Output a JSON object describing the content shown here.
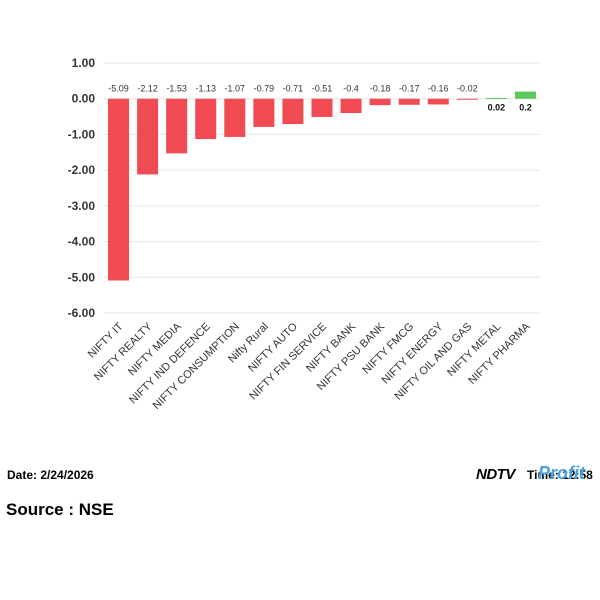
{
  "chart_data": {
    "type": "bar",
    "categories": [
      "NIFTY IT",
      "NIFTY REALTY",
      "NIFTY MEDIA",
      "NIFTY IND DEFENCE",
      "NIFTY CONSUMPTION",
      "Nifty Rural",
      "NIFTY AUTO",
      "NIFTY FIN SERVICE",
      "NIFTY BANK",
      "NIFTY PSU BANK",
      "NIFTY FMCG",
      "NIFTY ENERGY",
      "NIFTY OIL AND GAS",
      "NIFTY METAL",
      "NIFTY PHARMA"
    ],
    "values": [
      -5.09,
      -2.12,
      -1.53,
      -1.13,
      -1.07,
      -0.79,
      -0.71,
      -0.51,
      -0.4,
      -0.18,
      -0.17,
      -0.16,
      -0.02,
      0.02,
      0.2
    ],
    "data_labels": [
      "-5.09",
      "-2.12",
      "-1.53",
      "-1.13",
      "-1.07",
      "-0.79",
      "-0.71",
      "-0.51",
      "-0.4",
      "-0.18",
      "-0.17",
      "-0.16",
      "-0.02",
      "0.02",
      "0.2"
    ],
    "ylim": [
      -6,
      1
    ],
    "yticks": [
      1,
      0,
      -1,
      -2,
      -3,
      -4,
      -5,
      -6
    ],
    "ytick_labels": [
      "1.00",
      "0.00",
      "-1.00",
      "-2.00",
      "-3.00",
      "-4.00",
      "-5.00",
      "-6.00"
    ],
    "grid": true,
    "colors": {
      "negative": "#f04a52",
      "positive": "#5cc85c"
    }
  },
  "footer": {
    "date": "Date: 2/24/2026",
    "source": "Source : NSE",
    "time": "Time: 12:58",
    "brand_ndtv": "NDTV",
    "brand_profit": "Profit"
  }
}
